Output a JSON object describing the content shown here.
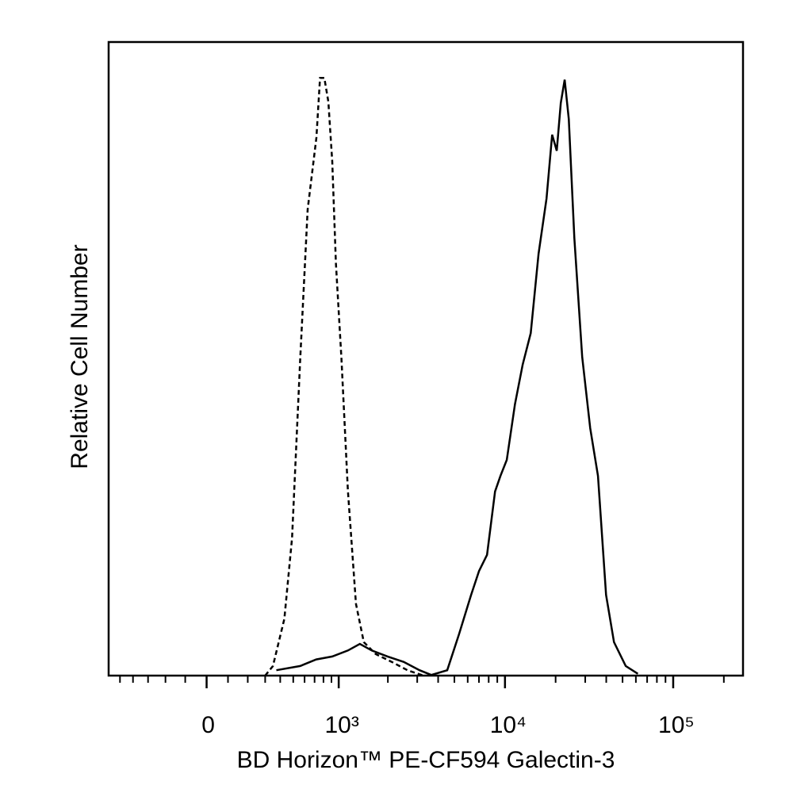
{
  "chart_data": {
    "type": "line",
    "xlabel": "BD Horizon™ PE-CF594 Galectin-3",
    "ylabel": "Relative Cell Number",
    "xscale": "asinh",
    "xlim": [
      -600,
      260000
    ],
    "ylim": [
      0,
      106
    ],
    "xticks": [
      0,
      {
        "value": 1000,
        "label": "10³"
      },
      {
        "value": 10000,
        "label": "10⁴"
      },
      {
        "value": 100000,
        "label": "10⁵"
      }
    ],
    "minor_xticks": [
      -500,
      -400,
      -300,
      -200,
      -100,
      100,
      200,
      300,
      400,
      500,
      600,
      700,
      800,
      900,
      2000,
      3000,
      4000,
      5000,
      6000,
      7000,
      8000,
      9000,
      20000,
      30000,
      40000,
      50000,
      60000,
      70000,
      80000,
      90000,
      200000
    ],
    "series": [
      {
        "color": "#000000",
        "line_style": "dashed",
        "x": [
          300,
          350,
          430,
          490,
          560,
          630,
          720,
          760,
          810,
          860,
          910,
          960,
          1040,
          1140,
          1280,
          1430,
          1690,
          2110,
          2620,
          3270
        ],
        "values": [
          0,
          1.6,
          9.5,
          23,
          53,
          78,
          90,
          100,
          100,
          96,
          86,
          69,
          53,
          31,
          12,
          5.6,
          3.6,
          2.3,
          0.9,
          0
        ]
      },
      {
        "color": "#000000",
        "line_style": "solid",
        "x": [
          373,
          560,
          718,
          910,
          1142,
          1352,
          1598,
          1992,
          2487,
          3097,
          3640,
          4533,
          5325,
          6285,
          7010,
          7818,
          8728,
          9402,
          10245,
          11458,
          12739,
          14221,
          15839,
          17659,
          19074,
          20321,
          21467,
          22646,
          23961,
          25848,
          28780,
          32116,
          35722,
          39900,
          44484,
          52235,
          61671
        ],
        "values": [
          0.9,
          1.6,
          2.7,
          3.2,
          4.2,
          5.3,
          4.2,
          3.2,
          2.3,
          0.9,
          0.1,
          0.9,
          6.9,
          13.5,
          17.5,
          20.2,
          30.8,
          33.4,
          36.1,
          45.4,
          52,
          57.3,
          70.6,
          79.8,
          90.5,
          87.8,
          95.8,
          99.7,
          93.1,
          73.2,
          53.3,
          41.4,
          33.4,
          13.5,
          5.6,
          1.6,
          0.3
        ]
      }
    ]
  }
}
